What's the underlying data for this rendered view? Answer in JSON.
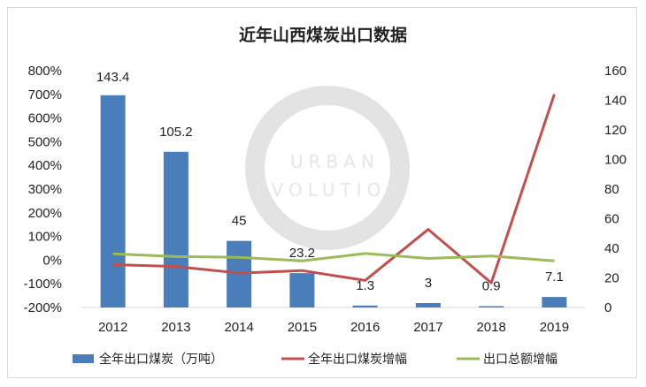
{
  "chart_data": {
    "type": "bar+line",
    "title": "近年山西煤炭出口数据",
    "categories": [
      "2012",
      "2013",
      "2014",
      "2015",
      "2016",
      "2017",
      "2018",
      "2019"
    ],
    "left_axis": {
      "ticks": [
        "800%",
        "700%",
        "600%",
        "500%",
        "400%",
        "300%",
        "200%",
        "100%",
        "0%",
        "-100%",
        "-200%"
      ],
      "ylim": [
        -200,
        800
      ]
    },
    "right_axis": {
      "ticks": [
        "160",
        "140",
        "120",
        "100",
        "80",
        "60",
        "40",
        "20",
        "0"
      ],
      "ylim": [
        0,
        160
      ]
    },
    "series": [
      {
        "name": "全年出口煤炭（万吨）",
        "kind": "bar",
        "axis": "right",
        "color": "#4a7ebb",
        "values": [
          143.4,
          105.2,
          45,
          23.2,
          1.3,
          3,
          0.9,
          7.1
        ],
        "labels": [
          "143.4",
          "105.2",
          "45",
          "23.2",
          "1.3",
          "3",
          "0.9",
          "7.1"
        ]
      },
      {
        "name": "全年出口煤炭增幅",
        "kind": "line",
        "axis": "left",
        "color": "#c0504d",
        "values": [
          -19,
          -27,
          -55,
          -44,
          -86,
          130,
          -96,
          700
        ]
      },
      {
        "name": "出口总额增幅",
        "kind": "line",
        "axis": "left",
        "color": "#9bbb59",
        "values": [
          27,
          15,
          12,
          -3,
          28,
          7,
          17,
          -3
        ]
      }
    ],
    "grid": false,
    "legend": "bottom"
  },
  "watermark": {
    "line1": "URBAN",
    "line2": "EVOLUTION"
  }
}
